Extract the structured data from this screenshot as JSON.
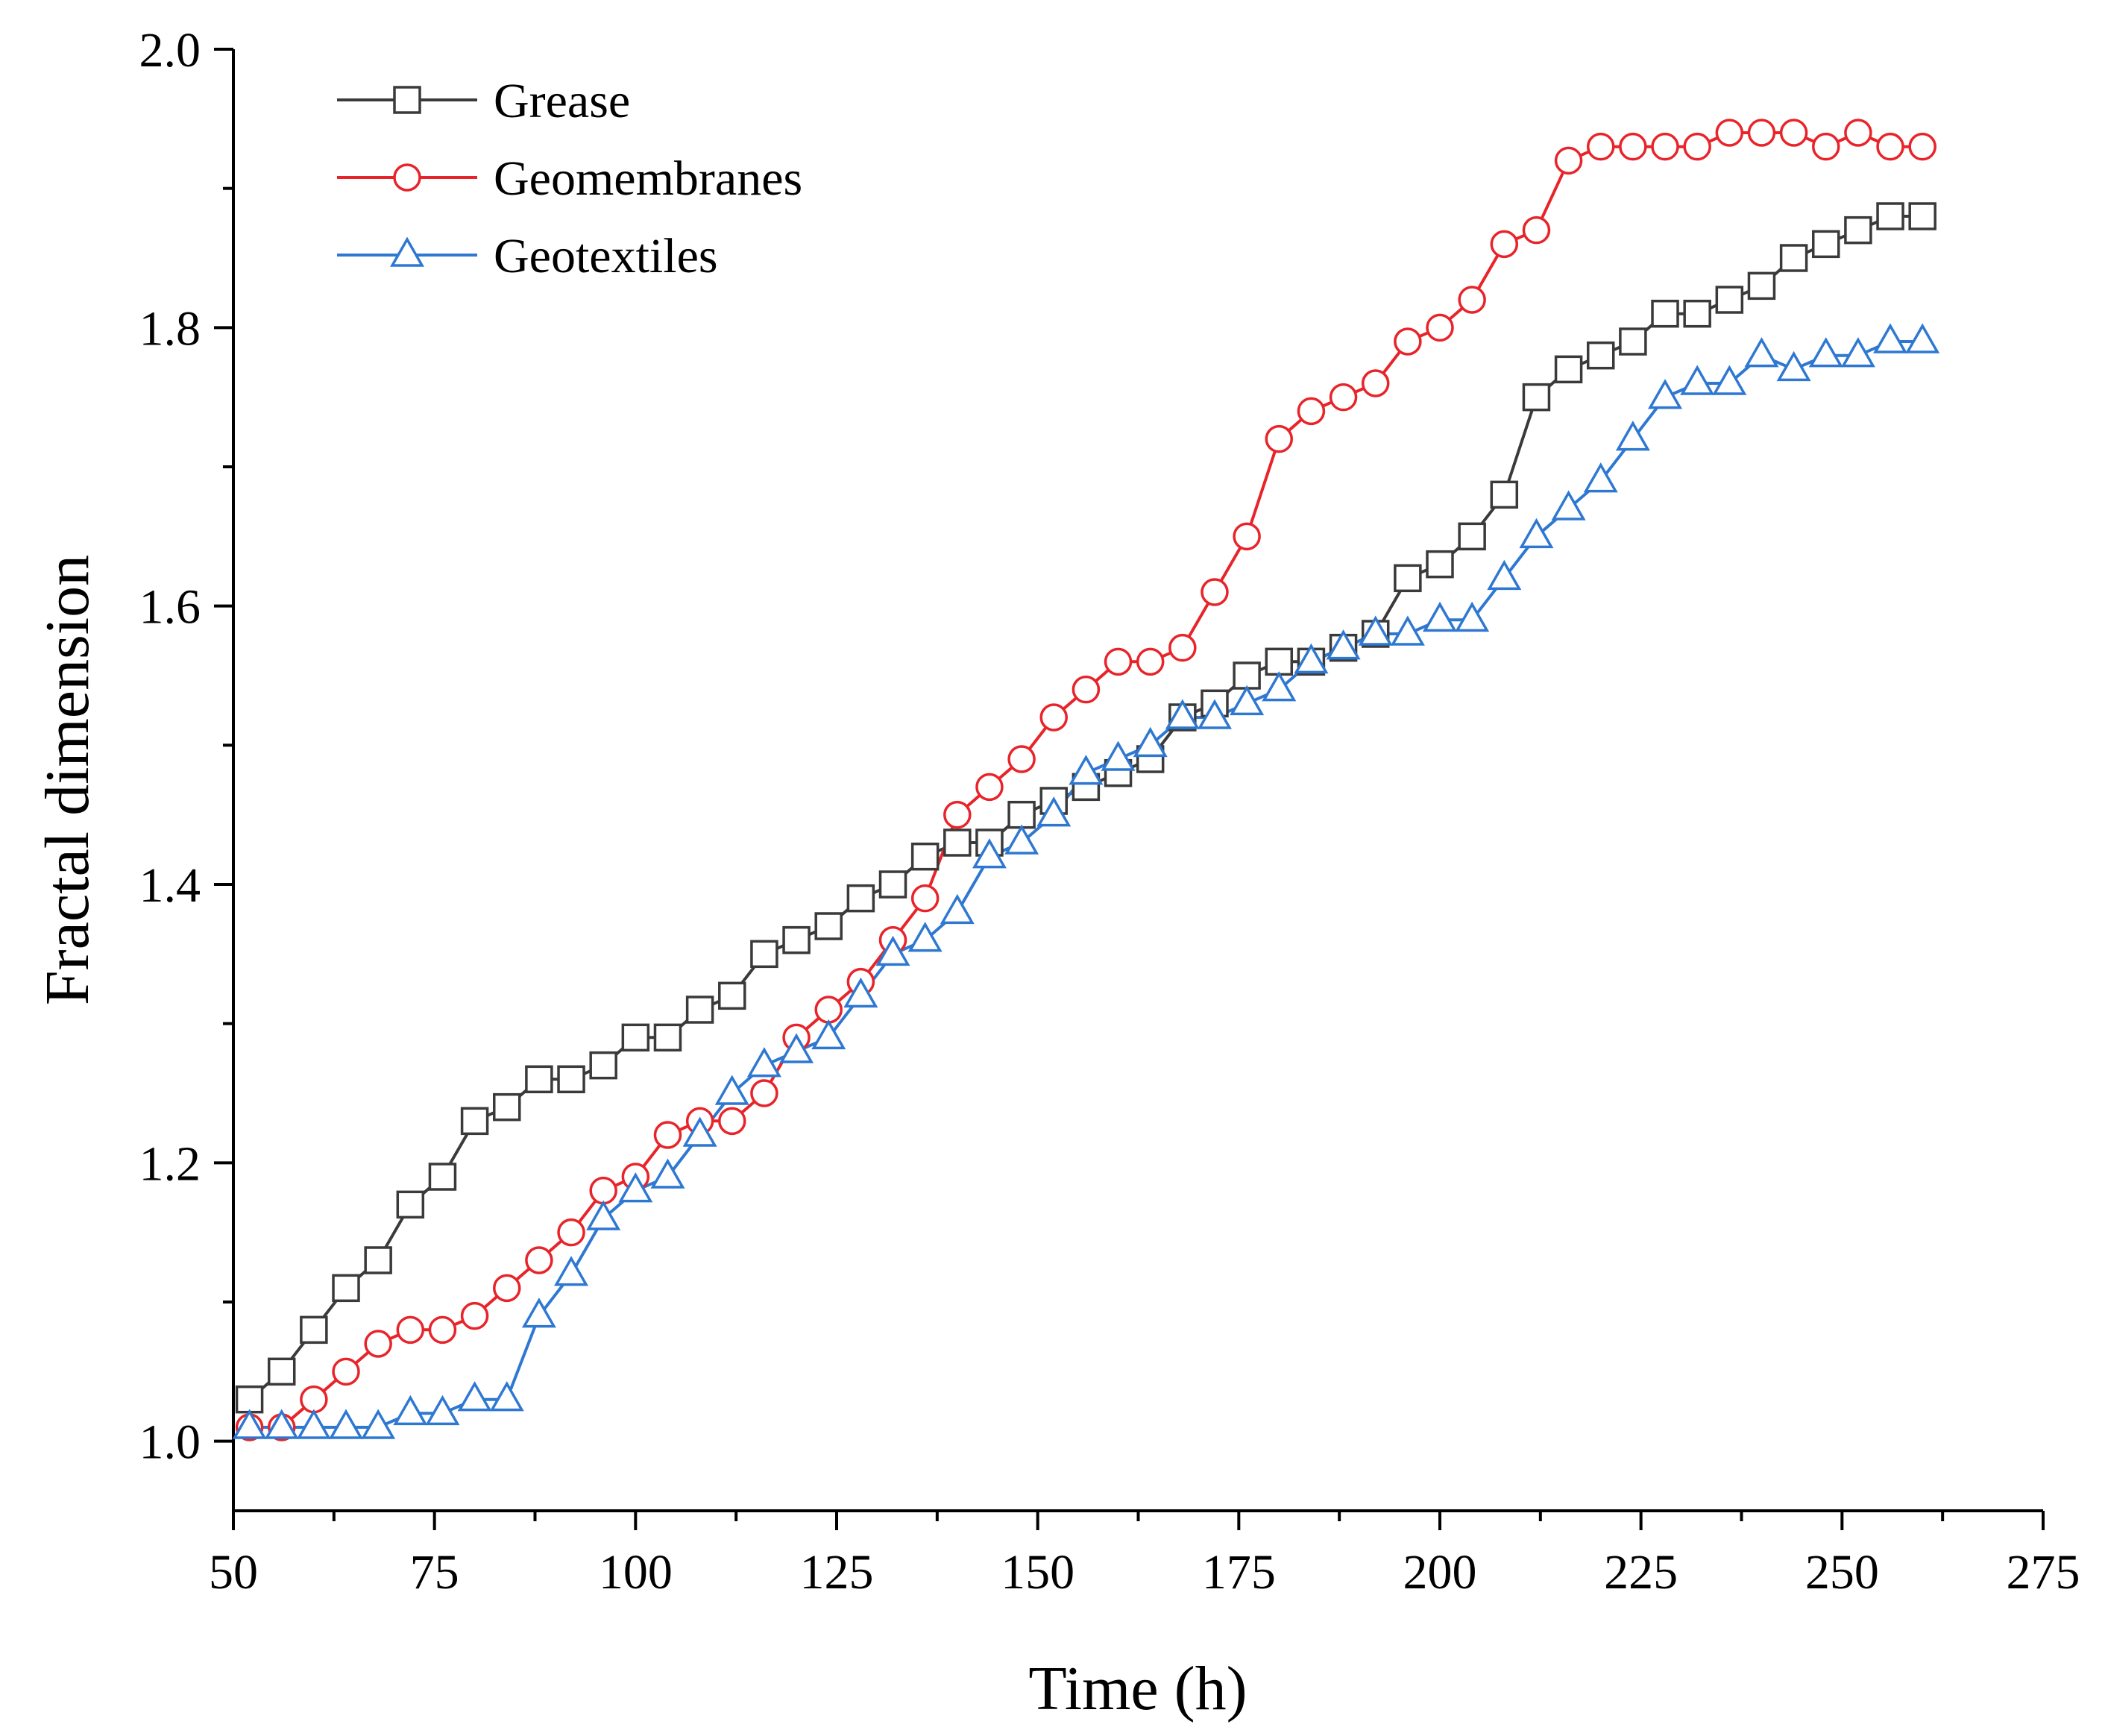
{
  "chart_data": {
    "type": "line",
    "title": "",
    "xlabel": "Time (h)",
    "ylabel": "Fractal dimension",
    "xlim": [
      50,
      275
    ],
    "ylim": [
      0.95,
      2.0
    ],
    "x_ticks": [
      "50",
      "75",
      "100",
      "125",
      "150",
      "175",
      "200",
      "225",
      "250",
      "275"
    ],
    "y_ticks": [
      "1.0",
      "1.2",
      "1.4",
      "1.6",
      "1.8",
      "2.0"
    ],
    "grid": false,
    "legend_position": "top-left",
    "x": [
      52,
      56,
      60,
      64,
      68,
      72,
      76,
      80,
      84,
      88,
      92,
      96,
      100,
      104,
      108,
      112,
      116,
      120,
      124,
      128,
      132,
      136,
      140,
      144,
      148,
      152,
      156,
      160,
      164,
      168,
      172,
      176,
      180,
      184,
      188,
      192,
      196,
      200,
      204,
      208,
      212,
      216,
      220,
      224,
      228,
      232,
      236,
      240,
      244,
      248,
      252,
      256,
      260
    ],
    "series": [
      {
        "name": "Grease",
        "color": "#3a3a3a",
        "marker": "square",
        "values": [
          1.03,
          1.05,
          1.08,
          1.11,
          1.13,
          1.17,
          1.19,
          1.23,
          1.24,
          1.26,
          1.26,
          1.27,
          1.29,
          1.29,
          1.31,
          1.32,
          1.35,
          1.36,
          1.37,
          1.39,
          1.4,
          1.42,
          1.43,
          1.43,
          1.45,
          1.46,
          1.47,
          1.48,
          1.49,
          1.52,
          1.53,
          1.55,
          1.56,
          1.56,
          1.57,
          1.58,
          1.62,
          1.63,
          1.65,
          1.68,
          1.75,
          1.77,
          1.78,
          1.79,
          1.81,
          1.81,
          1.82,
          1.83,
          1.85,
          1.86,
          1.87,
          1.88,
          1.88
        ]
      },
      {
        "name": "Geomembranes",
        "color": "#e8242a",
        "marker": "circle",
        "values": [
          1.01,
          1.01,
          1.03,
          1.05,
          1.07,
          1.08,
          1.08,
          1.09,
          1.11,
          1.13,
          1.15,
          1.18,
          1.19,
          1.22,
          1.23,
          1.23,
          1.25,
          1.29,
          1.31,
          1.33,
          1.36,
          1.39,
          1.45,
          1.47,
          1.49,
          1.52,
          1.54,
          1.56,
          1.56,
          1.57,
          1.61,
          1.65,
          1.72,
          1.74,
          1.75,
          1.76,
          1.79,
          1.8,
          1.82,
          1.86,
          1.87,
          1.92,
          1.93,
          1.93,
          1.93,
          1.93,
          1.94,
          1.94,
          1.94,
          1.93,
          1.94,
          1.93,
          1.93
        ]
      },
      {
        "name": "Geotextiles",
        "color": "#2e78d2",
        "marker": "triangle",
        "values": [
          1.01,
          1.01,
          1.01,
          1.01,
          1.01,
          1.02,
          1.02,
          1.03,
          1.03,
          1.09,
          1.12,
          1.16,
          1.18,
          1.19,
          1.22,
          1.25,
          1.27,
          1.28,
          1.29,
          1.32,
          1.35,
          1.36,
          1.38,
          1.42,
          1.43,
          1.45,
          1.48,
          1.49,
          1.5,
          1.52,
          1.52,
          1.53,
          1.54,
          1.56,
          1.57,
          1.58,
          1.58,
          1.59,
          1.59,
          1.62,
          1.65,
          1.67,
          1.69,
          1.72,
          1.75,
          1.76,
          1.76,
          1.78,
          1.77,
          1.78,
          1.78,
          1.79,
          1.79
        ]
      }
    ]
  }
}
